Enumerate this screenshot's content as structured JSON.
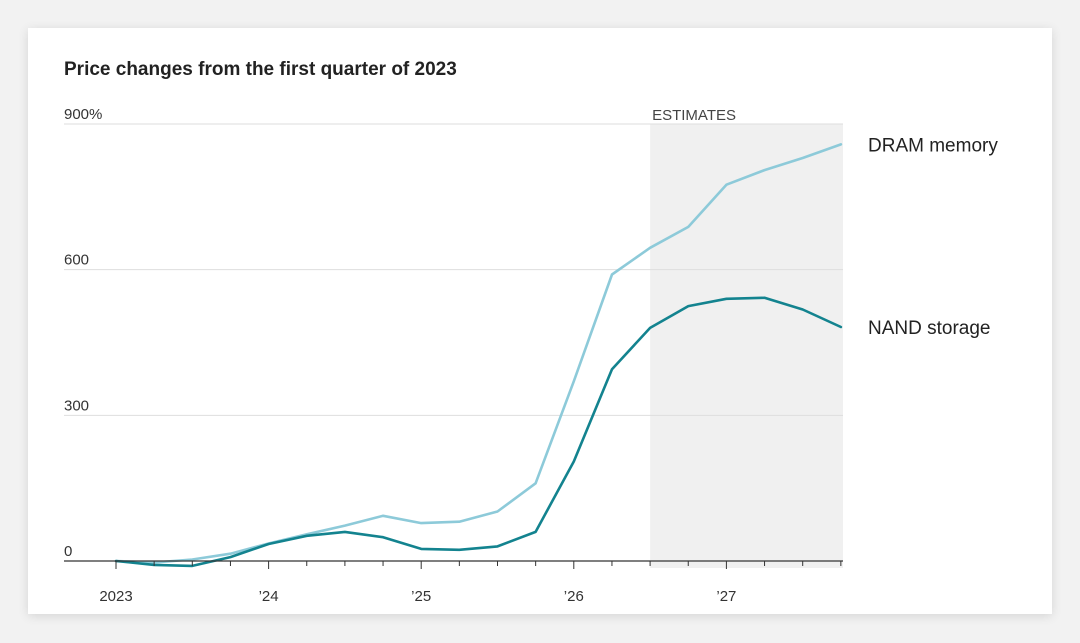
{
  "chart_data": {
    "type": "line",
    "title": "Price changes from the first quarter of 2023",
    "x_quarters": [
      "2023-Q1",
      "2023-Q2",
      "2023-Q3",
      "2023-Q4",
      "2024-Q1",
      "2024-Q2",
      "2024-Q3",
      "2024-Q4",
      "2025-Q1",
      "2025-Q2",
      "2025-Q3",
      "2025-Q4",
      "2026-Q1",
      "2026-Q2",
      "2026-Q3",
      "2026-Q4",
      "2027-Q1",
      "2027-Q2",
      "2027-Q3",
      "2027-Q4"
    ],
    "x_tick_labels": [
      {
        "quarter_index": 0,
        "label": "2023"
      },
      {
        "quarter_index": 4,
        "label": "’24"
      },
      {
        "quarter_index": 8,
        "label": "’25"
      },
      {
        "quarter_index": 12,
        "label": "’26"
      },
      {
        "quarter_index": 16,
        "label": "’27"
      }
    ],
    "y_ticks": [
      {
        "value": 0,
        "label": "0"
      },
      {
        "value": 300,
        "label": "300"
      },
      {
        "value": 600,
        "label": "600"
      },
      {
        "value": 900,
        "label": "900%"
      }
    ],
    "ylim": [
      -15,
      900
    ],
    "estimates": {
      "label": "ESTIMATES",
      "from_quarter_index": 14,
      "to_quarter_index": 19
    },
    "series": [
      {
        "name": "DRAM memory",
        "color": "#8dcad9",
        "values": [
          0,
          -3,
          3,
          15,
          36,
          55,
          73,
          93,
          78,
          81,
          102,
          160,
          370,
          590,
          645,
          688,
          775,
          805,
          830,
          858
        ]
      },
      {
        "name": "NAND storage",
        "color": "#13838f",
        "values": [
          0,
          -8,
          -10,
          8,
          35,
          52,
          60,
          49,
          25,
          23,
          30,
          60,
          205,
          395,
          480,
          525,
          540,
          542,
          518,
          482
        ]
      }
    ],
    "grid": true
  }
}
